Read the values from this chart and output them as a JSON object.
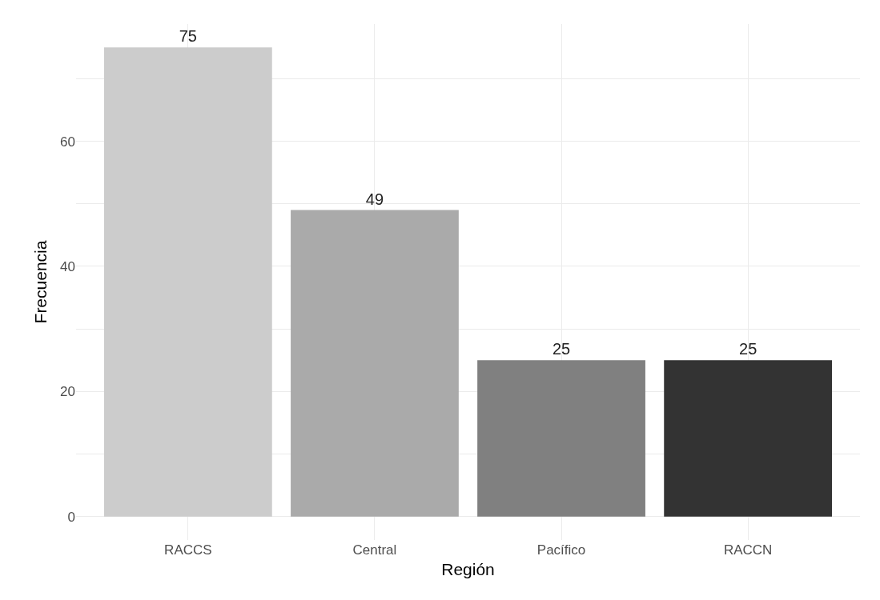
{
  "chart_data": {
    "type": "bar",
    "xlabel": "Región",
    "ylabel": "Frecuencia",
    "categories": [
      "RACCS",
      "Central",
      "Pacífico",
      "RACCN"
    ],
    "values": [
      75,
      49,
      25,
      25
    ],
    "colors": [
      "#cccccc",
      "#aaaaaa",
      "#808080",
      "#333333"
    ],
    "ylim": [
      -3.75,
      78.75
    ],
    "yticks": [
      0,
      {
        "value": 10,
        "label": null
      },
      20,
      {
        "value": 30,
        "label": null
      },
      40,
      {
        "value": 50,
        "label": null
      },
      60,
      {
        "value": 70,
        "label": null
      }
    ],
    "data_labels": true,
    "grid": true
  }
}
